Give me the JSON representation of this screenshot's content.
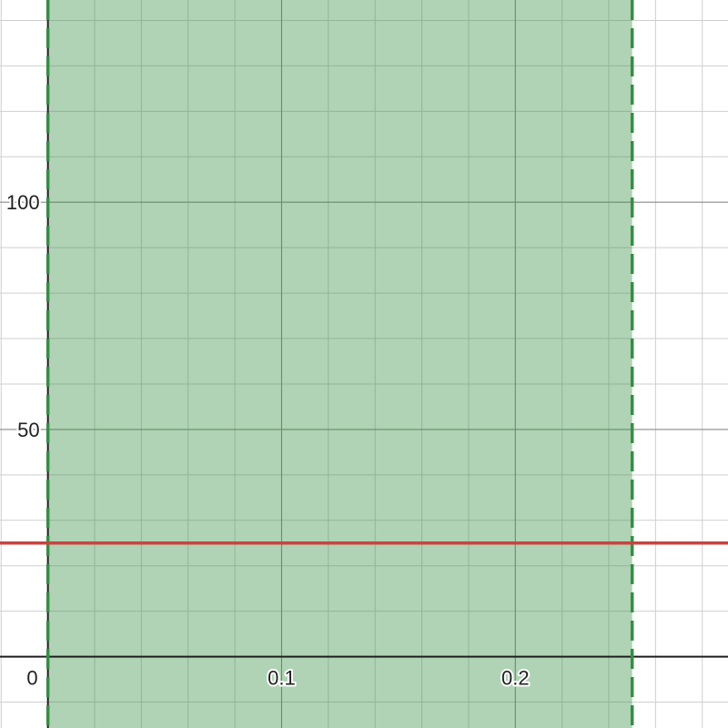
{
  "chart_data": {
    "type": "line",
    "title": "",
    "xlabel": "",
    "ylabel": "",
    "xlim": [
      -0.0205,
      0.291
    ],
    "ylim": [
      -15.7,
      144.5
    ],
    "grid": true,
    "x_ticks": [
      {
        "value": 0,
        "label": "0"
      },
      {
        "value": 0.1,
        "label": "0.1"
      },
      {
        "value": 0.2,
        "label": "0.2"
      }
    ],
    "y_ticks": [
      {
        "value": 50,
        "label": "50"
      },
      {
        "value": 100,
        "label": "100"
      }
    ],
    "x_minor_step": 0.02,
    "x_major_step": 0.1,
    "y_minor_step": 10,
    "y_major_step": 50,
    "shaded_region": {
      "x_from": 0,
      "x_to": 0.25,
      "boundary_style": "dashed",
      "color": "#388c46",
      "fill_color": "#2e8b3a"
    },
    "series": [
      {
        "type": "horizontal_line",
        "y": 25,
        "color": "#c74440"
      }
    ]
  }
}
